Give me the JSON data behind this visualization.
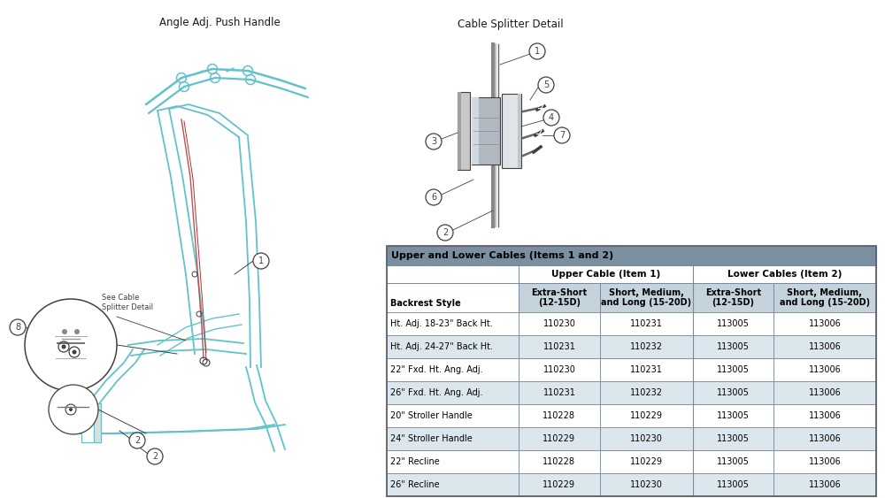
{
  "title_left": "Angle Adj. Push Handle",
  "title_right": "Cable Splitter Detail",
  "bg_color": "#ffffff",
  "table_header_bg": "#7a8fa0",
  "table_subheader_bg": "#c5d3dc",
  "table_row_even": "#dce6ed",
  "table_row_odd": "#ffffff",
  "table_header_text": "Upper and Lower Cables (Items 1 and 2)",
  "col_headers": [
    "Backrest Style",
    "Extra-Short\n(12-15D)",
    "Short, Medium,\nand Long (15-20D)",
    "Extra-Short\n(12-15D)",
    "Short, Medium,\nand Long (15-20D)"
  ],
  "group_headers": [
    "Upper Cable (Item 1)",
    "Lower Cables (Item 2)"
  ],
  "rows": [
    [
      "Ht. Adj. 18-23\" Back Ht.",
      "110230",
      "110231",
      "113005",
      "113006"
    ],
    [
      "Ht. Adj. 24-27\" Back Ht.",
      "110231",
      "110232",
      "113005",
      "113006"
    ],
    [
      "22\" Fxd. Ht. Ang. Adj.",
      "110230",
      "110231",
      "113005",
      "113006"
    ],
    [
      "26\" Fxd. Ht. Ang. Adj.",
      "110231",
      "110232",
      "113005",
      "113006"
    ],
    [
      "20\" Stroller Handle",
      "110228",
      "110229",
      "113005",
      "113006"
    ],
    [
      "24\" Stroller Handle",
      "110229",
      "110230",
      "113005",
      "113006"
    ],
    [
      "22\" Recline",
      "110228",
      "110229",
      "113005",
      "113006"
    ],
    [
      "26\" Recline",
      "110229",
      "110230",
      "113005",
      "113006"
    ]
  ],
  "annotation_label": "See Cable\nSplitter Detail",
  "diagram_color": "#62c2cc",
  "line_color": "#404040",
  "cable_color": "#c05050",
  "frame_color": "#6ab8c2"
}
